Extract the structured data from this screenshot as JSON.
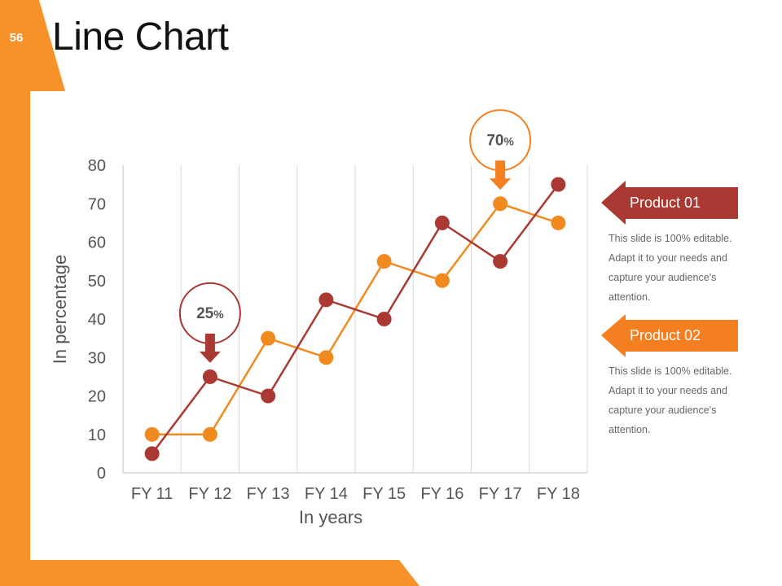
{
  "slide": {
    "page_number": "56",
    "title": "Line Chart",
    "accent_color": "#f7922a"
  },
  "legend": [
    {
      "label": "Product 01",
      "color": "#a93932",
      "description": "This slide is 100% editable. Adapt it to your needs and capture your audience's attention."
    },
    {
      "label": "Product 02",
      "color": "#f47f20",
      "description": "This slide is 100% editable. Adapt it to your needs and capture your audience's attention."
    }
  ],
  "callouts": [
    {
      "value": "25",
      "unit": "%",
      "category": "FY 12",
      "series": 0,
      "color": "#a93932"
    },
    {
      "value": "70",
      "unit": "%",
      "category": "FY 17",
      "series": 1,
      "color": "#f47f20"
    }
  ],
  "chart_data": {
    "type": "line",
    "title": "",
    "xlabel": "In years",
    "ylabel": "In percentage",
    "categories": [
      "FY 11",
      "FY 12",
      "FY 13",
      "FY 14",
      "FY 15",
      "FY 16",
      "FY 17",
      "FY 18"
    ],
    "ylim": [
      0,
      80
    ],
    "yticks": [
      0,
      10,
      20,
      30,
      40,
      50,
      60,
      70,
      80
    ],
    "grid": "vertical",
    "series": [
      {
        "name": "Product 01",
        "color": "#a93932",
        "values": [
          5,
          25,
          20,
          45,
          40,
          65,
          55,
          75
        ]
      },
      {
        "name": "Product 02",
        "color": "#f18a1e",
        "values": [
          10,
          10,
          35,
          30,
          55,
          50,
          70,
          65
        ]
      }
    ]
  }
}
